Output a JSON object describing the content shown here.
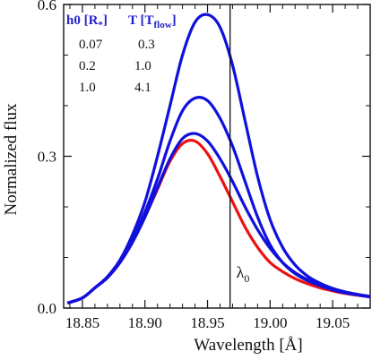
{
  "chart_data": {
    "type": "line",
    "xlabel": "Wavelength [Å]",
    "ylabel": "Normalized flux",
    "xlim": [
      18.835,
      19.08
    ],
    "ylim": [
      0.0,
      0.6
    ],
    "x_ticks": [
      "18.85",
      "18.90",
      "18.95",
      "19.00",
      "19.05"
    ],
    "y_ticks": [
      "0.0",
      "0.3",
      "0.6"
    ],
    "grid": false,
    "legend_placement": "top-left",
    "legend": {
      "header_h0": "h0 [R",
      "header_h0_sub": "*",
      "header_h0_end": "]",
      "header_T": "T [T",
      "header_T_sub": "flow",
      "header_T_end": "]",
      "rows": [
        {
          "h0": "0.07",
          "T": "0.3"
        },
        {
          "h0": "0.2",
          "T": "1.0"
        },
        {
          "h0": "1.0",
          "T": "4.1"
        }
      ]
    },
    "annotation": {
      "symbol": "λ",
      "subscript": "0",
      "x": 18.968
    },
    "colors": {
      "model": "#1010dd",
      "reference": "#ee1111",
      "axis": "#111111"
    },
    "series": [
      {
        "color": "#ee1111",
        "x": [
          18.838,
          18.85,
          18.86,
          18.87,
          18.88,
          18.89,
          18.9,
          18.91,
          18.92,
          18.93,
          18.94,
          18.95,
          18.96,
          18.97,
          18.98,
          18.99,
          19.0,
          19.01,
          19.02,
          19.03,
          19.04,
          19.05,
          19.06,
          19.08
        ],
        "y": [
          0.01,
          0.02,
          0.04,
          0.06,
          0.09,
          0.13,
          0.18,
          0.235,
          0.29,
          0.325,
          0.33,
          0.305,
          0.26,
          0.21,
          0.16,
          0.12,
          0.09,
          0.072,
          0.058,
          0.048,
          0.04,
          0.034,
          0.029,
          0.022
        ]
      },
      {
        "color": "#1010dd",
        "x": [
          18.838,
          18.85,
          18.86,
          18.87,
          18.88,
          18.89,
          18.9,
          18.91,
          18.92,
          18.93,
          18.94,
          18.95,
          18.96,
          18.97,
          18.98,
          18.99,
          19.0,
          19.01,
          19.02,
          19.03,
          19.04,
          19.05,
          19.06,
          19.08
        ],
        "y": [
          0.01,
          0.02,
          0.04,
          0.06,
          0.09,
          0.13,
          0.18,
          0.238,
          0.295,
          0.335,
          0.345,
          0.33,
          0.295,
          0.25,
          0.2,
          0.155,
          0.118,
          0.09,
          0.07,
          0.056,
          0.046,
          0.038,
          0.031,
          0.023
        ]
      },
      {
        "color": "#1010dd",
        "x": [
          18.838,
          18.85,
          18.86,
          18.87,
          18.88,
          18.89,
          18.9,
          18.91,
          18.92,
          18.93,
          18.94,
          18.95,
          18.96,
          18.97,
          18.98,
          18.99,
          19.0,
          19.01,
          19.02,
          19.03,
          19.04,
          19.05,
          19.06,
          19.08
        ],
        "y": [
          0.01,
          0.02,
          0.04,
          0.061,
          0.092,
          0.135,
          0.19,
          0.255,
          0.33,
          0.39,
          0.415,
          0.41,
          0.375,
          0.32,
          0.25,
          0.18,
          0.125,
          0.09,
          0.068,
          0.054,
          0.044,
          0.036,
          0.03,
          0.022
        ]
      },
      {
        "color": "#1010dd",
        "x": [
          18.838,
          18.85,
          18.86,
          18.87,
          18.88,
          18.89,
          18.9,
          18.91,
          18.92,
          18.93,
          18.94,
          18.95,
          18.96,
          18.97,
          18.98,
          18.99,
          19.0,
          19.01,
          19.02,
          19.03,
          19.04,
          19.05,
          19.06,
          19.08
        ],
        "y": [
          0.01,
          0.02,
          0.04,
          0.062,
          0.095,
          0.145,
          0.21,
          0.3,
          0.4,
          0.5,
          0.565,
          0.58,
          0.555,
          0.48,
          0.37,
          0.26,
          0.175,
          0.12,
          0.085,
          0.063,
          0.049,
          0.039,
          0.032,
          0.022
        ]
      }
    ]
  }
}
